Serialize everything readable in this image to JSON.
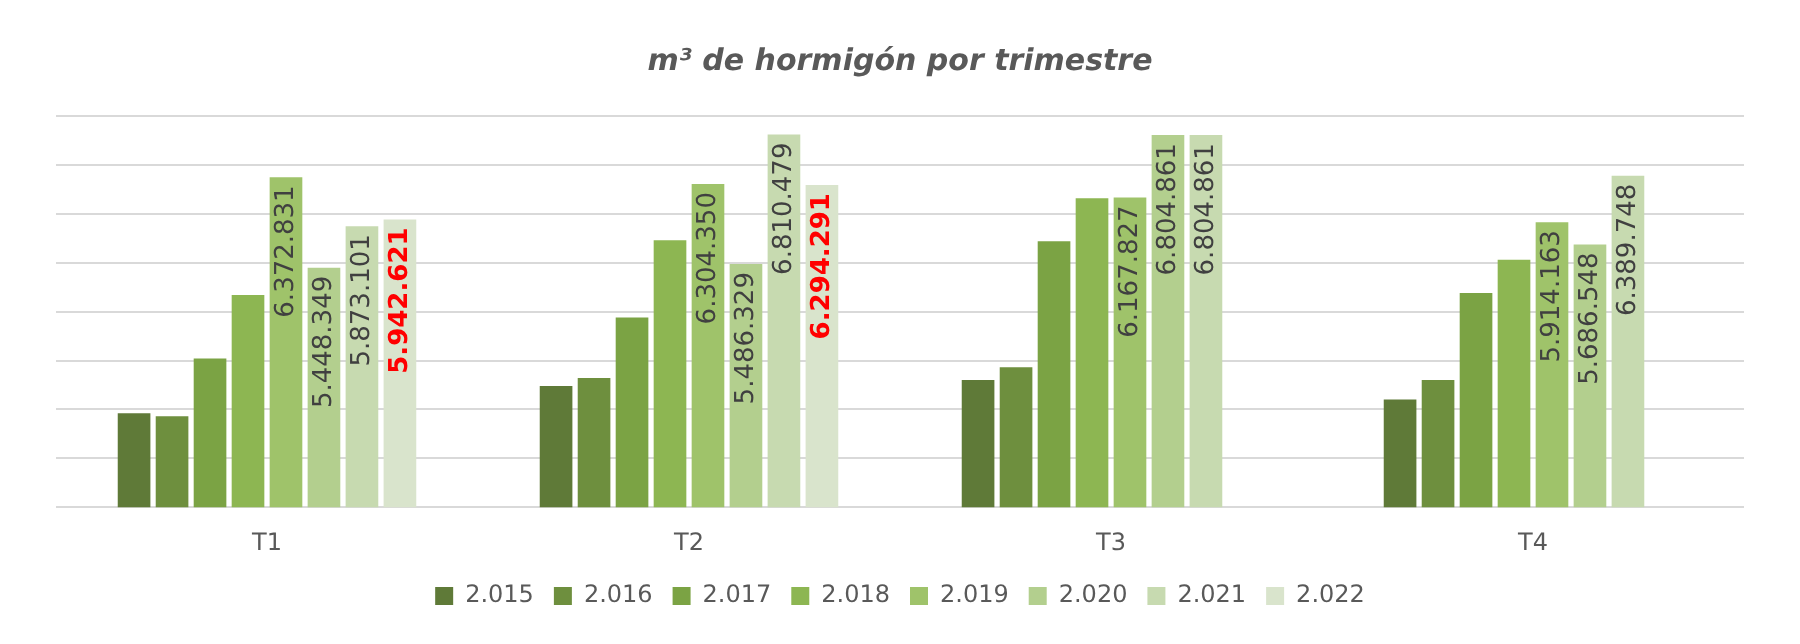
{
  "chart_data": {
    "type": "bar",
    "title": "m³ de hormigón por trimestre",
    "categories": [
      "T1",
      "T2",
      "T3",
      "T4"
    ],
    "ylim": [
      3000000,
      7000000
    ],
    "yticks": [
      {
        "value": 3000000,
        "label": null
      },
      {
        "value": 3500000,
        "label": null
      },
      {
        "value": 4000000,
        "label": null
      },
      {
        "value": 4500000,
        "label": null
      },
      {
        "value": 5000000,
        "label": null
      },
      {
        "value": 5500000,
        "label": null
      },
      {
        "value": 6000000,
        "label": null
      },
      {
        "value": 6500000,
        "label": null
      },
      {
        "value": 7000000,
        "label": null
      }
    ],
    "tick_labels": "x",
    "grid": "y",
    "legend": "bottom",
    "series": [
      {
        "name": "2.015",
        "color": "#5f7a38",
        "values": [
          3960000,
          4240000,
          4300000,
          4100000
        ]
      },
      {
        "name": "2.016",
        "color": "#6e8f3e",
        "values": [
          3930000,
          4320000,
          4430000,
          4300000
        ]
      },
      {
        "name": "2.017",
        "color": "#7ba344",
        "values": [
          4520000,
          4940000,
          5720000,
          5190000
        ]
      },
      {
        "name": "2.018",
        "color": "#8db652",
        "values": [
          5170000,
          5730000,
          6160000,
          5530000
        ]
      },
      {
        "name": "2.019",
        "color": "#9fc36a",
        "values": [
          6372831,
          6304350,
          6167827,
          5914163
        ],
        "value_labels": [
          "6.372.831",
          "6.304.350",
          "6.167.827",
          "5.914.163"
        ]
      },
      {
        "name": "2.020",
        "color": "#b3cf8e",
        "values": [
          5448349,
          5486329,
          6804861,
          5686548
        ],
        "value_labels": [
          "5.448.349",
          "5.486.329",
          "6.804.861",
          "5.686.548"
        ]
      },
      {
        "name": "2.021",
        "color": "#c7dab0",
        "values": [
          5873101,
          6810479,
          6804861,
          6389748
        ],
        "value_labels": [
          "5.873.101",
          "6.810.479",
          "6.804.861",
          "6.389.748"
        ]
      },
      {
        "name": "2.022",
        "color": "#d9e4cc",
        "values": [
          5942621,
          6294291,
          null,
          null
        ],
        "value_labels": [
          "5.942.621",
          "6.294.291",
          null,
          null
        ]
      }
    ]
  }
}
